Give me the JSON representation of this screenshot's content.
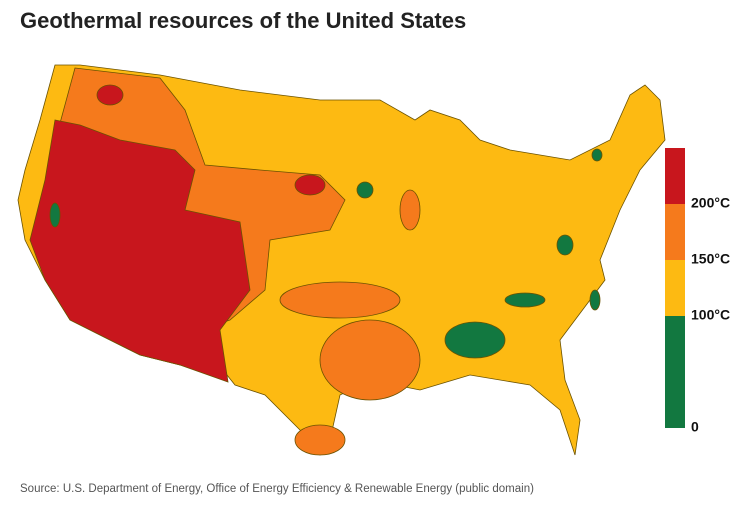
{
  "title": "Geothermal resources of the United States",
  "source": "Source: U.S. Department of Energy, Office of Energy Efficiency & Renewable Energy (public domain)",
  "legend": {
    "range": [
      0,
      250
    ],
    "ticks": [
      {
        "value": 0,
        "label": "0"
      },
      {
        "value": 100,
        "label": "100°C"
      },
      {
        "value": 150,
        "label": "150°C"
      },
      {
        "value": 200,
        "label": "200°C"
      }
    ],
    "colors": [
      "#127840",
      "#fdba12",
      "#f57a1c",
      "#c8161d"
    ]
  }
}
